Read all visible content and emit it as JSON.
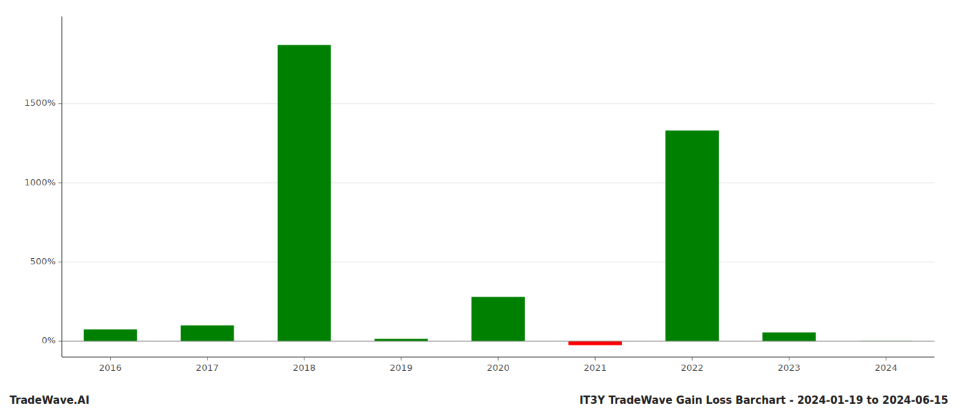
{
  "chart_data": {
    "type": "bar",
    "title": "IT3Y TradeWave Gain Loss Barchart - 2024-01-19 to 2024-06-15",
    "annotations": [
      "TradeWave.AI"
    ],
    "categories": [
      "2016",
      "2017",
      "2018",
      "2019",
      "2020",
      "2021",
      "2022",
      "2023",
      "2024"
    ],
    "values": [
      75,
      100,
      1870,
      15,
      280,
      -25,
      1330,
      55,
      2
    ],
    "colors": [
      "#008000",
      "#008000",
      "#008000",
      "#008000",
      "#008000",
      "#ff0000",
      "#008000",
      "#008000",
      "#008000"
    ],
    "ylim": [
      -100,
      2050
    ],
    "yticks": [
      {
        "value": 0,
        "label": "0%"
      },
      {
        "value": 500,
        "label": "500%"
      },
      {
        "value": 1000,
        "label": "1000%"
      },
      {
        "value": 1500,
        "label": "1500%"
      }
    ],
    "grid": true
  }
}
